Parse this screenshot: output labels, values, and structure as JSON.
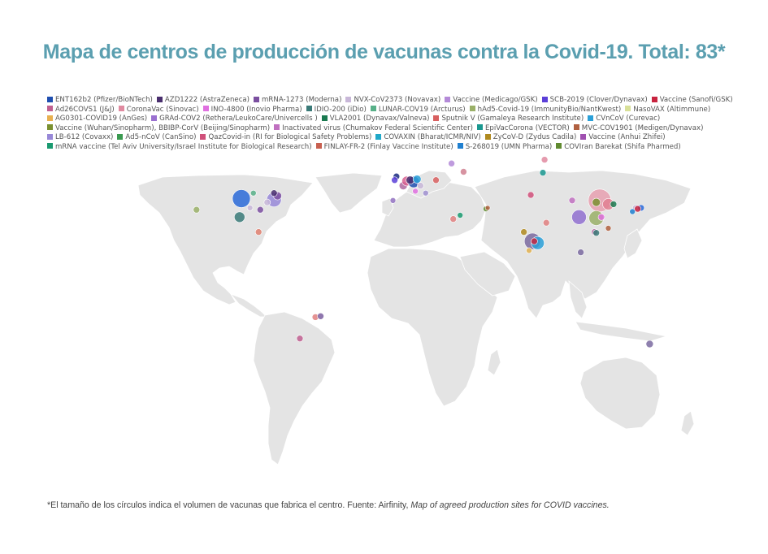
{
  "title": "Mapa de centros de producción de vacunas contra la Covid-19. Total: 83*",
  "legend": [
    [
      {
        "label": "ENT162b2 (Pfizer/BioNTech)",
        "color": "#1f4fb0"
      },
      {
        "label": "AZD1222 (AstraZeneca)",
        "color": "#4a2f6e"
      },
      {
        "label": "mRNA-1273 (Moderna)",
        "color": "#7b4fa0"
      },
      {
        "label": "NVX-CoV2373 (Novavax)",
        "color": "#c8b7d8"
      },
      {
        "label": "Vaccine (Medicago/GSK)",
        "color": "#b48ad8"
      },
      {
        "label": "SCB-2019 (Clover/Dynavax)",
        "color": "#5b3fd8"
      },
      {
        "label": "Vaccine (Sanofi/GSK)",
        "color": "#c8243f"
      }
    ],
    [
      {
        "label": "Ad26COVS1 (J&J)",
        "color": "#c06090"
      },
      {
        "label": "CoronaVac (Sinovac)",
        "color": "#e08aa0"
      },
      {
        "label": "INO-4800 (Inovio Pharma)",
        "color": "#e070e0"
      },
      {
        "label": "IDIO-200 (iDio)",
        "color": "#3a7a78"
      },
      {
        "label": "LUNAR-COV19 (Arcturus)",
        "color": "#58b088"
      },
      {
        "label": "hAd5-Covid-19 (ImmunityBio/NantKwest)",
        "color": "#9ab068"
      },
      {
        "label": "NasoVAX (Altimmune)",
        "color": "#d8e098"
      }
    ],
    [
      {
        "label": "AG0301-COVID19 (AnGes)",
        "color": "#e8b050"
      },
      {
        "label": "GRAd-COV2 (Rethera/LeukoCare/Univercells )",
        "color": "#9a70d0"
      },
      {
        "label": "VLA2001 (Dynavax/Valneva)",
        "color": "#1a7a50"
      },
      {
        "label": "Sputnik V (Gamaleya Research Institute)",
        "color": "#d86060"
      },
      {
        "label": "CVnCoV (Curevac)",
        "color": "#2aa0d8"
      }
    ],
    [
      {
        "label": "Vaccine (Wuhan/Sinopharm), BBIBP-CorV (Beijing/Sinopharm)",
        "color": "#7a9030"
      },
      {
        "label": "Inactivated virus (Chumakov Federal Scientific Center)",
        "color": "#c070c0"
      },
      {
        "label": "EpiVacCorona (VECTOR)",
        "color": "#1a9890"
      },
      {
        "label": "MVC-COV1901 (Medigen/Dynavax)",
        "color": "#b06040"
      }
    ],
    [
      {
        "label": "LB-612 (Covaxx)",
        "color": "#9888d8"
      },
      {
        "label": "Ad5-nCoV (CanSino)",
        "color": "#3a9a50"
      },
      {
        "label": "QazCovid-in (RI for Biological Safety Problems)",
        "color": "#d0507a"
      },
      {
        "label": "COVAXIN (Bharat/ICMR/NIV)",
        "color": "#20a8c8"
      },
      {
        "label": "ZyCoV-D (Zydus Cadila)",
        "color": "#b08a20"
      },
      {
        "label": "Vaccine (Anhui Zhifei)",
        "color": "#a050b0"
      }
    ],
    [
      {
        "label": "mRNA vaccine (Tel Aviv University/Israel Institute for Biological Research)",
        "color": "#1a9a70"
      },
      {
        "label": "FINLAY-FR-2 (Finlay Vaccine Institute)",
        "color": "#c86050"
      },
      {
        "label": "S-268019 (UMN Pharma)",
        "color": "#2080d0"
      },
      {
        "label": "COVIran Barekat (Shifa Pharmed)",
        "color": "#608a30"
      }
    ]
  ],
  "footnote": {
    "text": "*El tamaño de los círculos indica el volumen de vacunas que fabrica el centro. Fuente: Airfinity, ",
    "source_title": "Map of agreed production sites for COVID vaccines."
  },
  "sites": [
    {
      "lon": -92,
      "lat": 41,
      "r": 11,
      "color": "#2a6ad8"
    },
    {
      "lon": -73,
      "lat": 40.5,
      "r": 9,
      "color": "#9888d8"
    },
    {
      "lon": -71,
      "lat": 42.5,
      "r": 5,
      "color": "#7b4fa0"
    },
    {
      "lon": -73,
      "lat": 44,
      "r": 4,
      "color": "#4a2f6e"
    },
    {
      "lon": -77,
      "lat": 39,
      "r": 4,
      "color": "#c8b7d8"
    },
    {
      "lon": -85,
      "lat": 44,
      "r": 3.5,
      "color": "#58b088"
    },
    {
      "lon": -81,
      "lat": 35,
      "r": 4,
      "color": "#7b4fa0"
    },
    {
      "lon": -93,
      "lat": 31,
      "r": 6.5,
      "color": "#3a7a78"
    },
    {
      "lon": -118,
      "lat": 35,
      "r": 4,
      "color": "#9ab068"
    },
    {
      "lon": -87,
      "lat": 36,
      "r": 3.5,
      "color": "#c8b7d8"
    },
    {
      "lon": -82,
      "lat": 23,
      "r": 4,
      "color": "#e08070"
    },
    {
      "lon": -49,
      "lat": -23,
      "r": 4,
      "color": "#e08080"
    },
    {
      "lon": -46,
      "lat": -22.5,
      "r": 4,
      "color": "#7b5fa0"
    },
    {
      "lon": -58,
      "lat": -34.5,
      "r": 4,
      "color": "#c06090"
    },
    {
      "lon": -2,
      "lat": 53,
      "r": 4,
      "color": "#1a2a80"
    },
    {
      "lon": 2,
      "lat": 48,
      "r": 5,
      "color": "#b068a0"
    },
    {
      "lon": 4,
      "lat": 50.5,
      "r": 6,
      "color": "#d86090"
    },
    {
      "lon": 8,
      "lat": 50,
      "r": 7,
      "color": "#1f4fb0"
    },
    {
      "lon": 6,
      "lat": 51,
      "r": 5,
      "color": "#4a2f6e"
    },
    {
      "lon": 10,
      "lat": 51.5,
      "r": 5,
      "color": "#2aa0d8"
    },
    {
      "lon": 12,
      "lat": 48,
      "r": 4,
      "color": "#c8b7d8"
    },
    {
      "lon": -3,
      "lat": 51,
      "r": 4,
      "color": "#5b3fd8"
    },
    {
      "lon": 9,
      "lat": 45,
      "r": 3.5,
      "color": "#e070e0"
    },
    {
      "lon": -4,
      "lat": 40,
      "r": 3.5,
      "color": "#9070c0"
    },
    {
      "lon": 15,
      "lat": 44,
      "r": 3.5,
      "color": "#a090d0"
    },
    {
      "lon": 37,
      "lat": 55.5,
      "r": 4,
      "color": "#d08090"
    },
    {
      "lon": 30,
      "lat": 60,
      "r": 4,
      "color": "#b48ad8"
    },
    {
      "lon": 21,
      "lat": 51,
      "r": 4,
      "color": "#d86060"
    },
    {
      "lon": 35,
      "lat": 32,
      "r": 3.5,
      "color": "#1a9a70"
    },
    {
      "lon": 31,
      "lat": 30,
      "r": 4,
      "color": "#e08080"
    },
    {
      "lon": 83,
      "lat": 55,
      "r": 4,
      "color": "#1a9890"
    },
    {
      "lon": 76,
      "lat": 43,
      "r": 4,
      "color": "#d0507a"
    },
    {
      "lon": 84,
      "lat": 62,
      "r": 4,
      "color": "#e08aa0"
    },
    {
      "lon": 50,
      "lat": 35.5,
      "r": 3.5,
      "color": "#608a30"
    },
    {
      "lon": 51,
      "lat": 36,
      "r": 3,
      "color": "#b06040"
    },
    {
      "lon": 72,
      "lat": 23,
      "r": 4,
      "color": "#b08a20"
    },
    {
      "lon": 77,
      "lat": 18,
      "r": 10,
      "color": "#7a6aa0"
    },
    {
      "lon": 80,
      "lat": 17,
      "r": 8,
      "color": "#2aa0d8"
    },
    {
      "lon": 78,
      "lat": 18,
      "r": 4,
      "color": "#c8243f"
    },
    {
      "lon": 75,
      "lat": 13,
      "r": 3.5,
      "color": "#e0b050"
    },
    {
      "lon": 85,
      "lat": 28,
      "r": 4,
      "color": "#e08080"
    },
    {
      "lon": 116,
      "lat": 40,
      "r": 14,
      "color": "#e8a0b0"
    },
    {
      "lon": 114,
      "lat": 39,
      "r": 5,
      "color": "#7a9030"
    },
    {
      "lon": 121,
      "lat": 38,
      "r": 7,
      "color": "#e08090"
    },
    {
      "lon": 124,
      "lat": 38,
      "r": 4,
      "color": "#1a7a50"
    },
    {
      "lon": 104,
      "lat": 31,
      "r": 9,
      "color": "#9070d0"
    },
    {
      "lon": 114,
      "lat": 30.5,
      "r": 9,
      "color": "#9ab068"
    },
    {
      "lon": 117,
      "lat": 31,
      "r": 4,
      "color": "#e070e0"
    },
    {
      "lon": 113,
      "lat": 23,
      "r": 4,
      "color": "#b068a0"
    },
    {
      "lon": 114,
      "lat": 22.5,
      "r": 4,
      "color": "#3a7a78"
    },
    {
      "lon": 121,
      "lat": 25,
      "r": 3.5,
      "color": "#b06040"
    },
    {
      "lon": 105,
      "lat": 12,
      "r": 4,
      "color": "#7a6aa0"
    },
    {
      "lon": 137,
      "lat": 36,
      "r": 4,
      "color": "#c8b7d8"
    },
    {
      "lon": 140,
      "lat": 36,
      "r": 4,
      "color": "#2a6ad8"
    },
    {
      "lon": 138,
      "lat": 35.5,
      "r": 4,
      "color": "#c8243f"
    },
    {
      "lon": 135,
      "lat": 34,
      "r": 3.5,
      "color": "#2080d0"
    },
    {
      "lon": 145,
      "lat": -37.5,
      "r": 4.5,
      "color": "#7a6aa0"
    },
    {
      "lon": 100,
      "lat": 40,
      "r": 4,
      "color": "#c070c0"
    }
  ]
}
